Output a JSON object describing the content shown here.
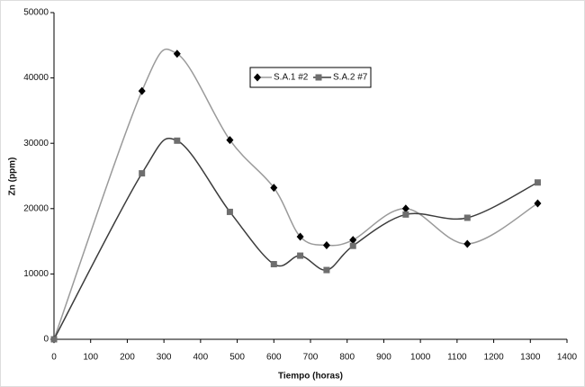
{
  "chart_data": {
    "type": "line",
    "x_label": "Tiempo (horas)",
    "y_label": "Zn (ppm)",
    "x": [
      0,
      240,
      336,
      480,
      600,
      672,
      744,
      816,
      960,
      1128,
      1320
    ],
    "series": [
      {
        "name": "S.A.1 #2",
        "color": "#000000",
        "line_color": "#9a9a9a",
        "marker": "diamond",
        "values": [
          0,
          38000,
          43700,
          30500,
          23200,
          15700,
          14400,
          15200,
          20000,
          14600,
          20800
        ]
      },
      {
        "name": "S.A.2 #7",
        "color": "#6e6e6e",
        "line_color": "#3c3c3c",
        "marker": "square",
        "values": [
          0,
          25400,
          30400,
          19500,
          11500,
          12800,
          10600,
          14300,
          19100,
          18600,
          24000
        ]
      }
    ],
    "xlim": [
      0,
      1400
    ],
    "xticks": [
      0,
      100,
      200,
      300,
      400,
      500,
      600,
      700,
      800,
      900,
      1000,
      1100,
      1200,
      1300,
      1400
    ],
    "ylim": [
      0,
      50000
    ],
    "yticks": [
      0,
      10000,
      20000,
      30000,
      40000,
      50000
    ],
    "grid": false
  }
}
